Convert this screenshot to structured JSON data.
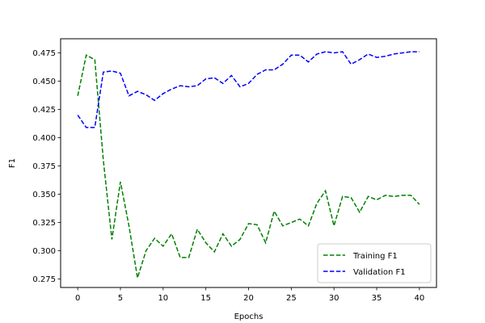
{
  "chart_data": {
    "type": "line",
    "xlabel": "Epochs",
    "ylabel": "F1",
    "xlim": [
      -2,
      42
    ],
    "ylim": [
      0.2675,
      0.4875
    ],
    "xticks": [
      0,
      5,
      10,
      15,
      20,
      25,
      30,
      35,
      40
    ],
    "yticks": [
      0.275,
      0.3,
      0.325,
      0.35,
      0.375,
      0.4,
      0.425,
      0.45,
      0.475
    ],
    "grid": false,
    "legend_position": "bottom-right",
    "x": [
      0,
      1,
      2,
      3,
      4,
      5,
      6,
      7,
      8,
      9,
      10,
      11,
      12,
      13,
      14,
      15,
      16,
      17,
      18,
      19,
      20,
      21,
      22,
      23,
      24,
      25,
      26,
      27,
      28,
      29,
      30,
      31,
      32,
      33,
      34,
      35,
      36,
      37,
      38,
      39,
      40
    ],
    "series": [
      {
        "name": "Training F1",
        "color": "#008000",
        "style": "dashed",
        "values": [
          0.437,
          0.473,
          0.469,
          0.38,
          0.31,
          0.361,
          0.322,
          0.276,
          0.3,
          0.311,
          0.304,
          0.315,
          0.294,
          0.294,
          0.319,
          0.307,
          0.299,
          0.315,
          0.304,
          0.31,
          0.324,
          0.323,
          0.307,
          0.335,
          0.322,
          0.325,
          0.328,
          0.322,
          0.342,
          0.353,
          0.322,
          0.348,
          0.347,
          0.334,
          0.348,
          0.345,
          0.349,
          0.348,
          0.349,
          0.349,
          0.341
        ]
      },
      {
        "name": "Validation F1",
        "color": "#0000ff",
        "style": "dashed",
        "values": [
          0.42,
          0.409,
          0.409,
          0.458,
          0.459,
          0.457,
          0.437,
          0.441,
          0.438,
          0.433,
          0.439,
          0.443,
          0.446,
          0.445,
          0.446,
          0.452,
          0.453,
          0.448,
          0.455,
          0.445,
          0.448,
          0.456,
          0.46,
          0.46,
          0.465,
          0.473,
          0.473,
          0.467,
          0.474,
          0.476,
          0.475,
          0.476,
          0.465,
          0.469,
          0.474,
          0.471,
          0.472,
          0.474,
          0.475,
          0.476,
          0.476
        ]
      }
    ]
  }
}
